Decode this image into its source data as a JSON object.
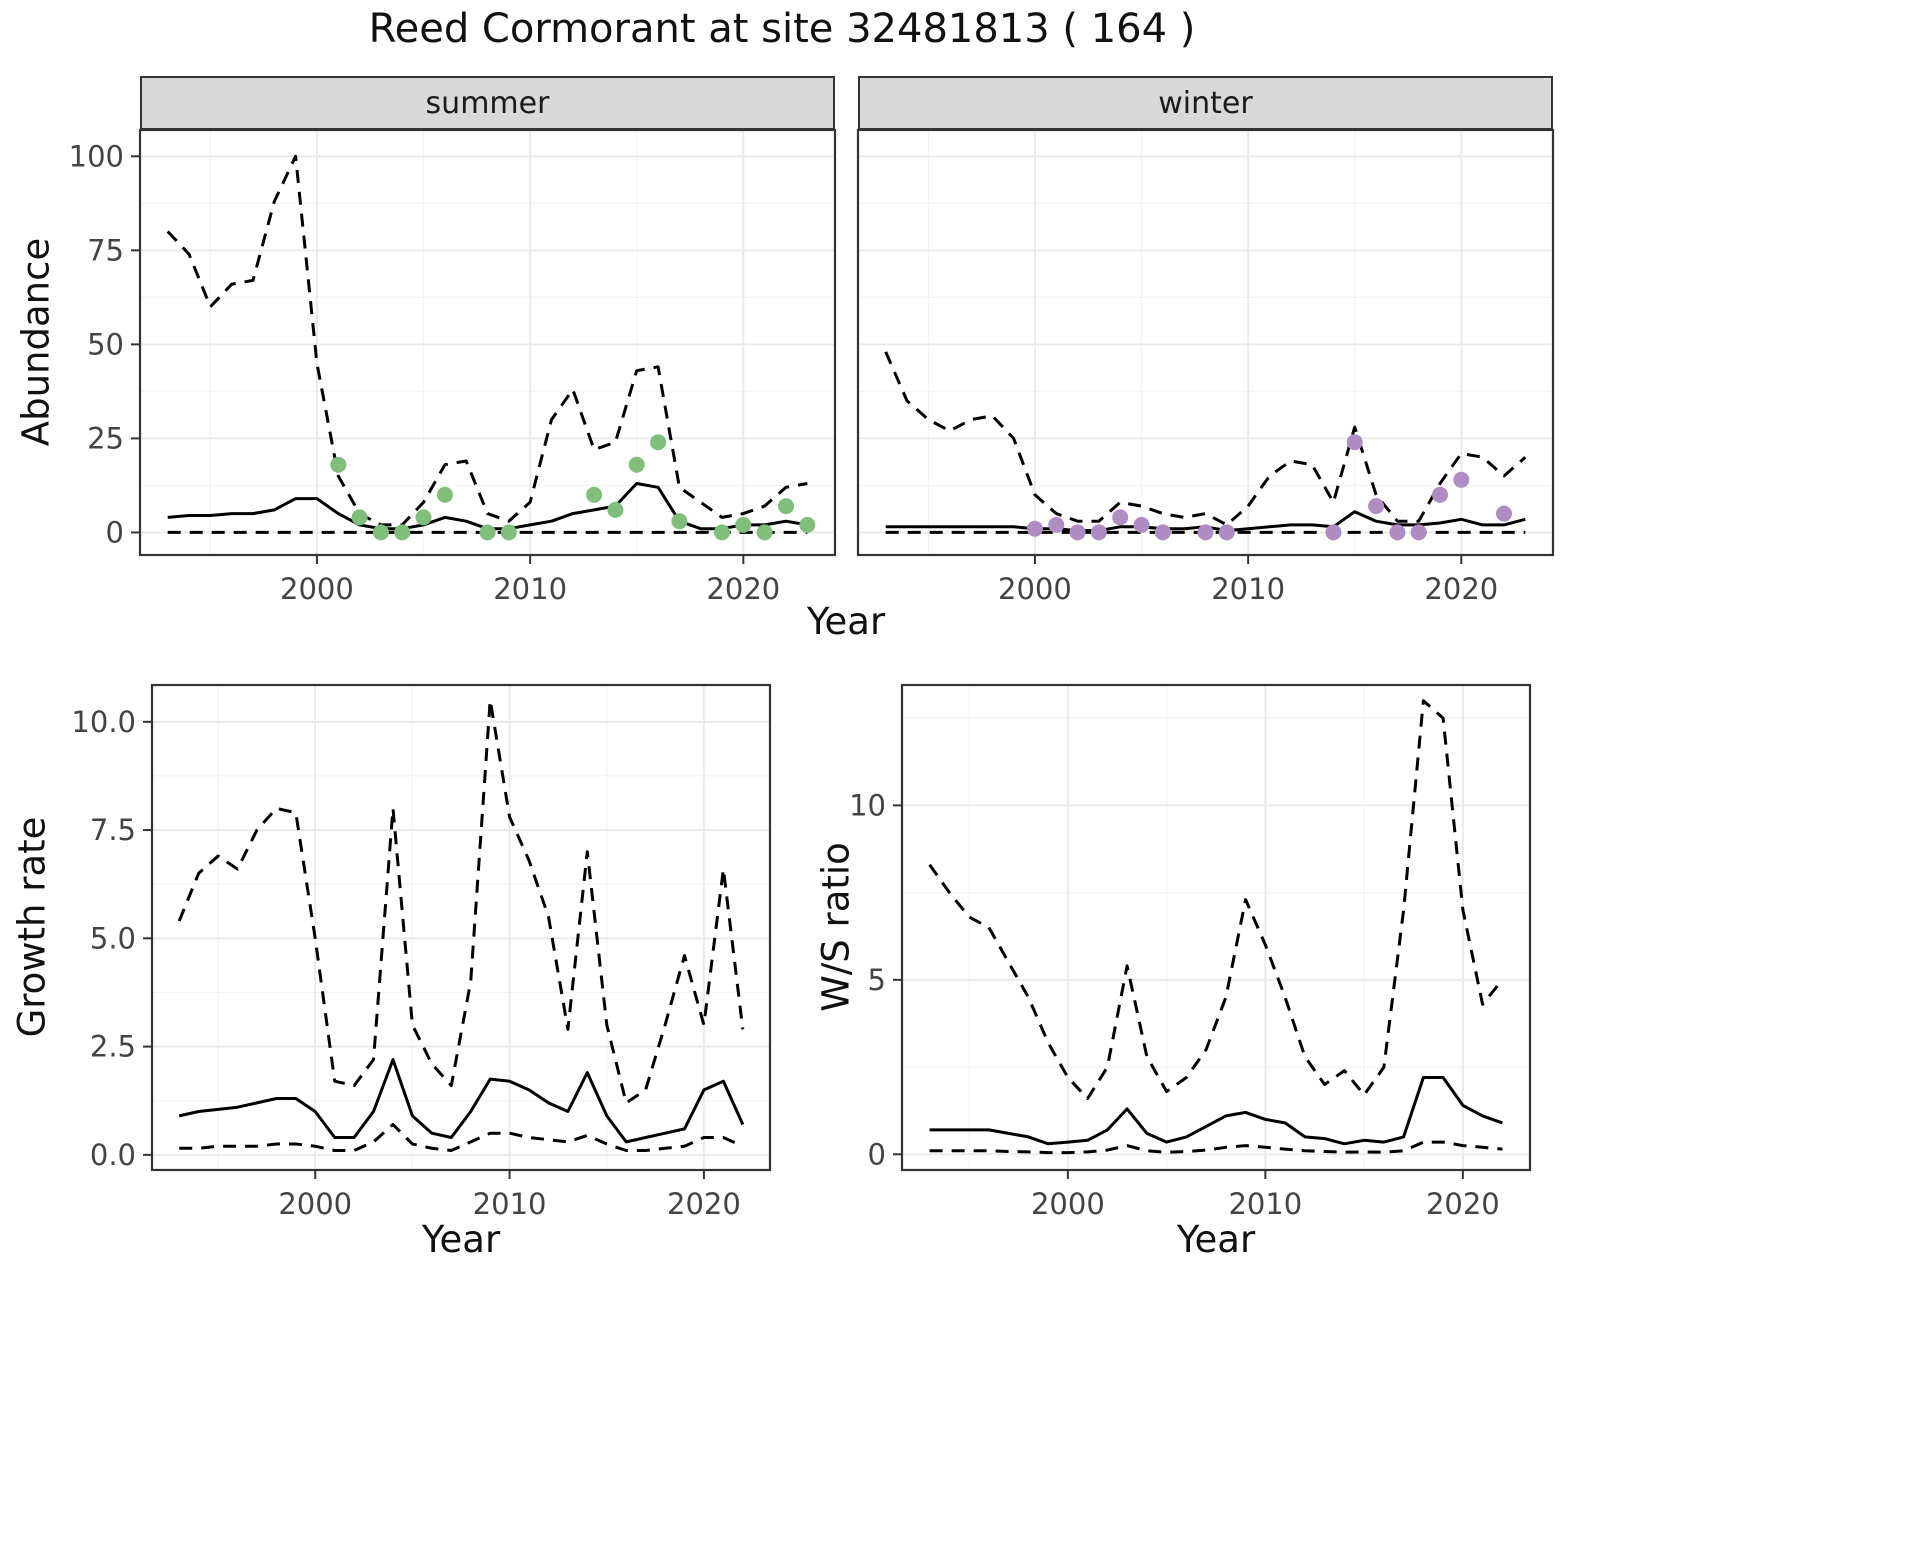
{
  "title": "Reed Cormorant at site 32481813 ( 164 )",
  "facets": [
    {
      "label": "summer"
    },
    {
      "label": "winter"
    }
  ],
  "axis_titles": {
    "abundance": "Abundance",
    "year_top": "Year",
    "growth": "Growth rate",
    "ws": "W/S ratio",
    "year_bottom_left": "Year",
    "year_bottom_right": "Year"
  },
  "colors": {
    "line": "#000000",
    "summer_points": "#7fbf7b",
    "winter_points": "#af8dc3",
    "strip_bg": "#d9d9d9",
    "grid_major": "#e9e9e9",
    "grid_minor": "#f4f4f4",
    "panel_border": "#333333",
    "tick_label": "#444444"
  },
  "chart_data": [
    {
      "id": "summer",
      "type": "line",
      "facet": "summer",
      "xlabel": "Year",
      "ylabel": "Abundance",
      "xlim": [
        1991.7,
        2024.3
      ],
      "ylim": [
        -6,
        107
      ],
      "xticks": [
        2000,
        2010,
        2020
      ],
      "xtick_labels": [
        "2000",
        "2010",
        "2020"
      ],
      "yticks": [
        0,
        25,
        50,
        75,
        100
      ],
      "ytick_labels": [
        "0",
        "25",
        "50",
        "75",
        "100"
      ],
      "grid": true,
      "legend": "none",
      "x": [
        1993,
        1994,
        1995,
        1996,
        1997,
        1998,
        1999,
        2000,
        2001,
        2002,
        2003,
        2004,
        2005,
        2006,
        2007,
        2008,
        2009,
        2010,
        2011,
        2012,
        2013,
        2014,
        2015,
        2016,
        2017,
        2018,
        2019,
        2020,
        2021,
        2022,
        2023
      ],
      "series": [
        {
          "name": "upper-ci",
          "style": "dashed",
          "color": "#000000",
          "values": [
            80,
            74,
            60,
            66,
            67,
            88,
            100,
            45,
            15,
            5,
            2,
            2,
            8,
            18,
            19,
            5,
            3,
            8,
            30,
            38,
            22,
            24,
            43,
            44,
            12,
            8,
            4,
            5,
            7,
            12,
            13
          ]
        },
        {
          "name": "lower-ci",
          "style": "dashed",
          "color": "#000000",
          "values": [
            0,
            0,
            0,
            0,
            0,
            0,
            0,
            0,
            0,
            0,
            0,
            0,
            0,
            0,
            0,
            0,
            0,
            0,
            0,
            0,
            0,
            0,
            0,
            0,
            0,
            0,
            0,
            0,
            0,
            0,
            0
          ]
        },
        {
          "name": "median",
          "style": "solid",
          "color": "#000000",
          "values": [
            4,
            4.5,
            4.5,
            5,
            5,
            6,
            9,
            9,
            5,
            2,
            1,
            1,
            2,
            4,
            3,
            1,
            1,
            2,
            3,
            5,
            6,
            7,
            13,
            12,
            3,
            1,
            1,
            2,
            2,
            3,
            2
          ]
        }
      ],
      "points": {
        "name": "observed-summer",
        "color": "#7fbf7b",
        "x": [
          2001,
          2002,
          2003,
          2004,
          2005,
          2006,
          2008,
          2009,
          2013,
          2014,
          2015,
          2016,
          2017,
          2019,
          2020,
          2021,
          2022,
          2023
        ],
        "y": [
          18,
          4,
          0,
          0,
          4,
          10,
          0,
          0,
          10,
          6,
          18,
          24,
          3,
          0,
          2,
          0,
          7,
          2
        ]
      }
    },
    {
      "id": "winter",
      "type": "line",
      "facet": "winter",
      "xlabel": "Year",
      "ylabel": "Abundance",
      "xlim": [
        1991.7,
        2024.3
      ],
      "ylim": [
        -6,
        107
      ],
      "xticks": [
        2000,
        2010,
        2020
      ],
      "xtick_labels": [
        "2000",
        "2010",
        "2020"
      ],
      "yticks": [
        0,
        25,
        50,
        75,
        100
      ],
      "ytick_labels": [
        "0",
        "25",
        "50",
        "75",
        "100"
      ],
      "grid": true,
      "legend": "none",
      "x": [
        1993,
        1994,
        1995,
        1996,
        1997,
        1998,
        1999,
        2000,
        2001,
        2002,
        2003,
        2004,
        2005,
        2006,
        2007,
        2008,
        2009,
        2010,
        2011,
        2012,
        2013,
        2014,
        2015,
        2016,
        2017,
        2018,
        2019,
        2020,
        2021,
        2022,
        2023
      ],
      "series": [
        {
          "name": "upper-ci",
          "style": "dashed",
          "color": "#000000",
          "values": [
            48,
            35,
            30,
            27,
            30,
            31,
            25,
            10,
            5,
            3,
            3,
            8,
            7,
            5,
            4,
            5,
            2,
            7,
            15,
            19,
            18,
            8,
            28,
            10,
            3,
            3,
            13,
            21,
            20,
            15,
            20
          ]
        },
        {
          "name": "lower-ci",
          "style": "dashed",
          "color": "#000000",
          "values": [
            0,
            0,
            0,
            0,
            0,
            0,
            0,
            0,
            0,
            0,
            0,
            0,
            0,
            0,
            0,
            0,
            0,
            0,
            0,
            0,
            0,
            0,
            0,
            0,
            0,
            0,
            0,
            0,
            0,
            0,
            0
          ]
        },
        {
          "name": "median",
          "style": "solid",
          "color": "#000000",
          "values": [
            1.5,
            1.5,
            1.5,
            1.5,
            1.5,
            1.5,
            1.5,
            1,
            1,
            0.5,
            0.5,
            1.5,
            1.5,
            1,
            1,
            1.5,
            0.5,
            1,
            1.5,
            2,
            2,
            1.5,
            5.5,
            3,
            2,
            2,
            2.5,
            3.5,
            2,
            2,
            3.5
          ]
        }
      ],
      "points": {
        "name": "observed-winter",
        "color": "#af8dc3",
        "x": [
          2000,
          2001,
          2002,
          2003,
          2004,
          2005,
          2006,
          2008,
          2009,
          2014,
          2015,
          2016,
          2017,
          2018,
          2019,
          2020,
          2022
        ],
        "y": [
          1,
          2,
          0,
          0,
          4,
          2,
          0,
          0,
          0,
          0,
          24,
          7,
          0,
          0,
          10,
          14,
          5
        ]
      }
    },
    {
      "id": "growth",
      "type": "line",
      "facet": null,
      "xlabel": "Year",
      "ylabel": "Growth rate",
      "xlim": [
        1991.6,
        2023.4
      ],
      "ylim": [
        -0.35,
        10.85
      ],
      "xticks": [
        2000,
        2010,
        2020
      ],
      "xtick_labels": [
        "2000",
        "2010",
        "2020"
      ],
      "yticks": [
        0,
        2.5,
        5,
        7.5,
        10
      ],
      "ytick_labels": [
        "0.0",
        "2.5",
        "5.0",
        "7.5",
        "10.0"
      ],
      "grid": true,
      "legend": "none",
      "x": [
        1993,
        1994,
        1995,
        1996,
        1997,
        1998,
        1999,
        2000,
        2001,
        2002,
        2003,
        2004,
        2005,
        2006,
        2007,
        2008,
        2009,
        2010,
        2011,
        2012,
        2013,
        2014,
        2015,
        2016,
        2017,
        2018,
        2019,
        2020,
        2021,
        2022
      ],
      "series": [
        {
          "name": "upper-ci",
          "style": "dashed",
          "color": "#000000",
          "values": [
            5.4,
            6.5,
            6.9,
            6.6,
            7.5,
            8.0,
            7.9,
            5.0,
            1.7,
            1.6,
            2.2,
            8.0,
            3.0,
            2.1,
            1.6,
            4.0,
            10.5,
            7.8,
            6.8,
            5.5,
            2.9,
            7.0,
            3.0,
            1.2,
            1.5,
            3.0,
            4.6,
            3.0,
            6.6,
            2.9
          ]
        },
        {
          "name": "lower-ci",
          "style": "dashed",
          "color": "#000000",
          "values": [
            0.15,
            0.15,
            0.2,
            0.2,
            0.2,
            0.25,
            0.25,
            0.2,
            0.1,
            0.1,
            0.3,
            0.7,
            0.25,
            0.15,
            0.1,
            0.3,
            0.5,
            0.5,
            0.4,
            0.35,
            0.3,
            0.45,
            0.25,
            0.1,
            0.1,
            0.15,
            0.2,
            0.4,
            0.4,
            0.2
          ]
        },
        {
          "name": "median",
          "style": "solid",
          "color": "#000000",
          "values": [
            0.9,
            1.0,
            1.05,
            1.1,
            1.2,
            1.3,
            1.3,
            1.0,
            0.4,
            0.4,
            1.0,
            2.2,
            0.9,
            0.5,
            0.4,
            1.0,
            1.75,
            1.7,
            1.5,
            1.2,
            1.0,
            1.9,
            0.9,
            0.3,
            0.4,
            0.5,
            0.6,
            1.5,
            1.7,
            0.7
          ]
        }
      ],
      "points": null
    },
    {
      "id": "ws",
      "type": "line",
      "facet": null,
      "xlabel": "Year",
      "ylabel": "W/S ratio",
      "xlim": [
        1991.6,
        2023.4
      ],
      "ylim": [
        -0.45,
        13.45
      ],
      "xticks": [
        2000,
        2010,
        2020
      ],
      "xtick_labels": [
        "2000",
        "2010",
        "2020"
      ],
      "yticks": [
        0,
        5,
        10
      ],
      "ytick_labels": [
        "0",
        "5",
        "10"
      ],
      "grid": true,
      "legend": "none",
      "x": [
        1993,
        1994,
        1995,
        1996,
        1997,
        1998,
        1999,
        2000,
        2001,
        2002,
        2003,
        2004,
        2005,
        2006,
        2007,
        2008,
        2009,
        2010,
        2011,
        2012,
        2013,
        2014,
        2015,
        2016,
        2017,
        2018,
        2019,
        2020,
        2021,
        2022
      ],
      "series": [
        {
          "name": "upper-ci",
          "style": "dashed",
          "color": "#000000",
          "values": [
            8.3,
            7.5,
            6.8,
            6.5,
            5.5,
            4.5,
            3.2,
            2.2,
            1.6,
            2.5,
            5.4,
            2.8,
            1.8,
            2.2,
            3.0,
            4.5,
            7.3,
            6.0,
            4.5,
            2.8,
            2.0,
            2.4,
            1.7,
            2.5,
            7.0,
            13.0,
            12.5,
            7.0,
            4.3,
            5.0
          ]
        },
        {
          "name": "lower-ci",
          "style": "dashed",
          "color": "#000000",
          "values": [
            0.1,
            0.1,
            0.1,
            0.1,
            0.08,
            0.07,
            0.05,
            0.05,
            0.07,
            0.12,
            0.25,
            0.1,
            0.06,
            0.08,
            0.12,
            0.2,
            0.25,
            0.2,
            0.15,
            0.1,
            0.08,
            0.06,
            0.07,
            0.06,
            0.1,
            0.35,
            0.35,
            0.25,
            0.2,
            0.15
          ]
        },
        {
          "name": "median",
          "style": "solid",
          "color": "#000000",
          "values": [
            0.7,
            0.7,
            0.7,
            0.7,
            0.6,
            0.5,
            0.3,
            0.35,
            0.4,
            0.7,
            1.3,
            0.6,
            0.35,
            0.5,
            0.8,
            1.1,
            1.2,
            1.0,
            0.9,
            0.5,
            0.45,
            0.3,
            0.4,
            0.35,
            0.5,
            2.2,
            2.2,
            1.4,
            1.1,
            0.9
          ]
        }
      ],
      "points": null
    }
  ]
}
